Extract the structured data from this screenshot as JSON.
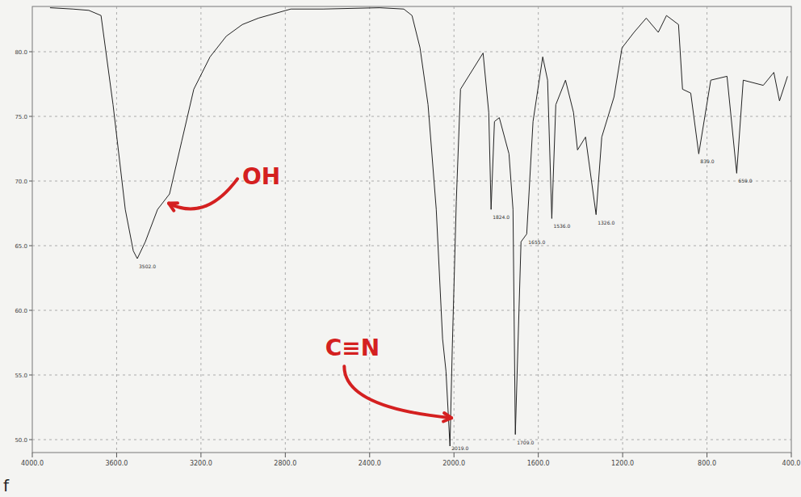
{
  "chart_data": {
    "type": "line",
    "label": "f",
    "color": "#222222",
    "grid": true,
    "xlim": [
      4000,
      400
    ],
    "ylim": [
      49,
      83.5
    ],
    "xticks": [
      {
        "value": 4000,
        "label": "4000.0"
      },
      {
        "value": 3600,
        "label": "3600.0"
      },
      {
        "value": 3200,
        "label": "3200.0"
      },
      {
        "value": 2800,
        "label": "2800.0"
      },
      {
        "value": 2400,
        "label": "2400.0"
      },
      {
        "value": 2000,
        "label": "2000.0"
      },
      {
        "value": 1600,
        "label": "1600.0"
      },
      {
        "value": 1200,
        "label": "1200.0"
      },
      {
        "value": 800,
        "label": "800.0"
      },
      {
        "value": 400,
        "label": "400.0"
      }
    ],
    "yticks": [
      {
        "value": 50,
        "label": "50.0"
      },
      {
        "value": 55,
        "label": "55.0"
      },
      {
        "value": 60,
        "label": "60.0"
      },
      {
        "value": 65,
        "label": "65.0"
      },
      {
        "value": 70,
        "label": "70.0"
      },
      {
        "value": 75,
        "label": "75.0"
      },
      {
        "value": 80,
        "label": "80.0"
      }
    ],
    "x": [
      3916,
      3808,
      3732,
      3674,
      3617,
      3559,
      3521,
      3502,
      3464,
      3406,
      3349,
      3291,
      3234,
      3157,
      3080,
      3004,
      2927,
      2774,
      2621,
      2353,
      2238,
      2199,
      2161,
      2123,
      2084,
      2054,
      2038,
      2019,
      2008,
      1989,
      1969,
      1862,
      1835,
      1824,
      1808,
      1785,
      1739,
      1720,
      1709,
      1682,
      1655,
      1625,
      1579,
      1556,
      1536,
      1517,
      1471,
      1433,
      1414,
      1376,
      1326,
      1299,
      1241,
      1203,
      1146,
      1088,
      1031,
      992,
      935,
      916,
      877,
      839,
      782,
      705,
      659,
      628,
      533,
      483,
      456,
      418
    ],
    "values": [
      83.4,
      83.3,
      83.2,
      82.8,
      75.9,
      67.8,
      64.6,
      64.0,
      65.3,
      67.8,
      69.0,
      73.1,
      77.1,
      79.6,
      81.2,
      82.1,
      82.6,
      83.3,
      83.3,
      83.4,
      83.3,
      82.8,
      80.3,
      75.9,
      67.8,
      57.8,
      55.3,
      49.5,
      57.1,
      68.4,
      77.1,
      79.9,
      75.3,
      67.8,
      74.6,
      74.9,
      72.1,
      67.8,
      50.4,
      65.3,
      65.9,
      74.6,
      79.6,
      77.8,
      67.1,
      75.9,
      77.8,
      75.3,
      72.4,
      73.4,
      67.4,
      73.4,
      76.5,
      80.3,
      81.5,
      82.6,
      81.5,
      82.8,
      82.1,
      77.1,
      76.8,
      72.1,
      77.8,
      78.1,
      70.6,
      77.8,
      77.4,
      78.4,
      76.2,
      78.1
    ],
    "peaks": [
      {
        "x": 3502,
        "y": 64.0,
        "label": "3502.0"
      },
      {
        "x": 2019,
        "y": 49.5,
        "label": "2019.0"
      },
      {
        "x": 1824,
        "y": 67.8,
        "label": "1824.0"
      },
      {
        "x": 1709,
        "y": 50.4,
        "label": "1709.0"
      },
      {
        "x": 1655,
        "y": 65.9,
        "label": "1655.0"
      },
      {
        "x": 1536,
        "y": 67.1,
        "label": "1536.0"
      },
      {
        "x": 1326,
        "y": 67.4,
        "label": "1326.0"
      },
      {
        "x": 839,
        "y": 72.1,
        "label": "839.0"
      },
      {
        "x": 659,
        "y": 70.6,
        "label": "659.0"
      }
    ],
    "annotations": [
      {
        "text": "OH",
        "x": 3368,
        "y": 68.4,
        "color": "#d42020"
      },
      {
        "text": "C≡N",
        "x": 2027,
        "y": 51.8,
        "color": "#d42020"
      }
    ]
  }
}
